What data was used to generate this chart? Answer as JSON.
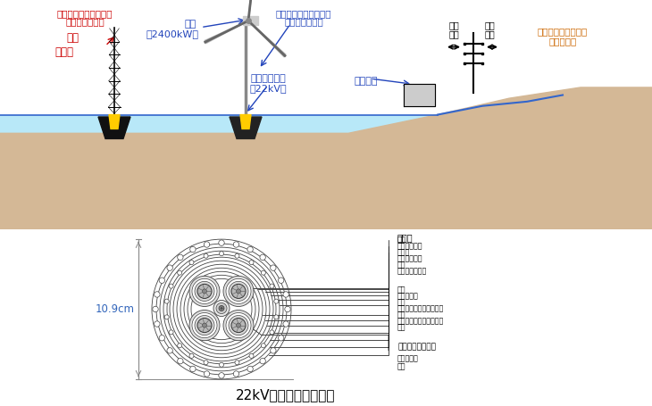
{
  "bg_color": "#ffffff",
  "top": {
    "sea_color": "#b8e8f8",
    "ground_color": "#d4b896",
    "line_color": "#2244aa"
  },
  "labels": {
    "obs_system": "洋上風況観測システム\n実証研究の設備",
    "obs_tower": "観測\nタワー",
    "wind_system": "洋上風力発電システム\n実証研究の設備",
    "wind_turbine": "風車",
    "wind_kw": "（2400kW）",
    "power_cable": "送電ケーブル\n（22kV）",
    "substation": "変電設備",
    "research": "研究\n設備",
    "company": "当社\n系統",
    "grid": "銚子市潮見町などの\n配電線網へ",
    "cable_title": "22kV海底送電ケーブル",
    "dimension": "10.9cm",
    "power_line_hdr": "電力線",
    "layer_labels": [
      "導体",
      "内部半導電層",
      "絶縁体",
      "外部半導電層",
      "鉛被",
      "半導電性テープ",
      "介在",
      "押えテープ",
      "座床",
      "亜鉛メッキ鉄線（下層）",
      "座床",
      "亜鉛メッキ鉄線（上層）",
      "外装"
    ],
    "optical_hdr": "光ファイバ通信線",
    "optical_unit": "光ユニット",
    "optical_sheath": "鉛被"
  }
}
